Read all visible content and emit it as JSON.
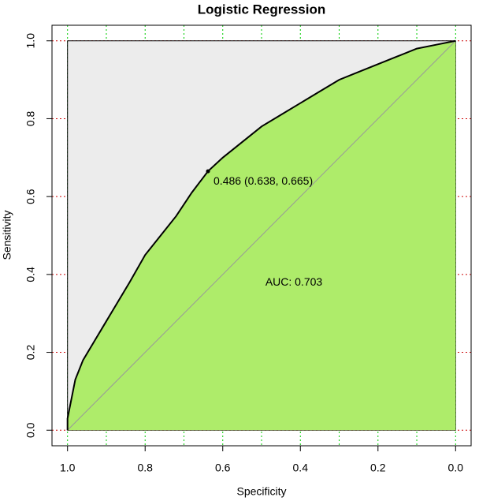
{
  "chart_data": {
    "type": "roc",
    "title": "Logistic Regression",
    "x_label": "Specificity",
    "y_label": "Sensitivity",
    "x": [
      1,
      1,
      0.99,
      0.98,
      0.96,
      0.93,
      0.9,
      0.87,
      0.84,
      0.8,
      0.76,
      0.72,
      0.68,
      0.638,
      0.6,
      0.55,
      0.5,
      0.45,
      0.4,
      0.35,
      0.3,
      0.25,
      0.2,
      0.15,
      0.1,
      0.05,
      0
    ],
    "values": [
      0,
      0.03,
      0.08,
      0.13,
      0.18,
      0.23,
      0.28,
      0.33,
      0.38,
      0.45,
      0.5,
      0.55,
      0.61,
      0.665,
      0.7,
      0.74,
      0.78,
      0.81,
      0.84,
      0.87,
      0.9,
      0.92,
      0.94,
      0.96,
      0.98,
      0.99,
      1
    ],
    "xlim": [
      1.04,
      -0.04
    ],
    "ylim": [
      -0.04,
      1.04
    ],
    "xticks": [
      {
        "value": 1,
        "label": "1.0"
      },
      0.8,
      0.6,
      0.4,
      0.2,
      {
        "value": 0,
        "label": "0.0"
      }
    ],
    "yticks": [
      {
        "value": 0,
        "label": "0.0"
      },
      0.2,
      0.4,
      0.6,
      0.8,
      {
        "value": 1,
        "label": "1.0"
      }
    ],
    "xgrid": [
      0,
      0.1,
      0.2,
      0.3,
      0.4,
      0.5,
      0.6,
      0.7,
      0.8,
      0.9,
      1
    ],
    "ygrid": [
      0,
      0.2,
      0.4,
      0.6,
      0.8,
      1
    ],
    "xgrid_color": "#00cc00",
    "ygrid_color": "#cc0000",
    "curve_color": "#000000",
    "area_color": "#aeec6a",
    "background_color": "#ececec",
    "threshold": {
      "x": 0.638,
      "y": 0.665,
      "label": "0.486 (0.638, 0.665)"
    },
    "auc_label": "AUC: 0.703"
  }
}
